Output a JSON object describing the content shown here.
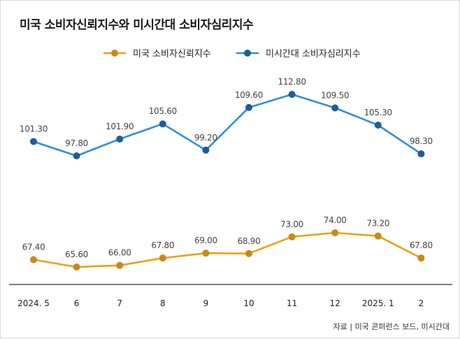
{
  "title": "미국 소비자신뢰지수와 미시간대 소비자심리지수",
  "source": "자료 | 미국 콘퍼런스 보드, 미시간대",
  "colors": {
    "orange": "#e8a317",
    "orange_marker": "#c8891a",
    "blue": "#2f8fd9",
    "blue_marker": "#1f5c96",
    "axis": "#333333",
    "label": "#444444"
  },
  "chart_data": {
    "type": "line",
    "title": "미국 소비자신뢰지수와 미시간대 소비자심리지수",
    "categories": [
      "2024. 5",
      "6",
      "7",
      "8",
      "9",
      "10",
      "11",
      "12",
      "2025. 1",
      "2"
    ],
    "series": [
      {
        "name": "미국 소비자신뢰지수",
        "color": "#e8a317",
        "values": [
          67.4,
          65.6,
          66.0,
          67.8,
          69.0,
          68.9,
          73.0,
          74.0,
          73.2,
          67.8
        ],
        "labels": [
          "67.40",
          "65.60",
          "66.00",
          "67.80",
          "69.00",
          "68.90",
          "73.00",
          "74.00",
          "73.20",
          "67.80"
        ]
      },
      {
        "name": "미시간대 소비자심리지수",
        "color": "#2f8fd9",
        "values": [
          101.3,
          97.8,
          101.9,
          105.6,
          99.2,
          109.6,
          112.8,
          109.5,
          105.3,
          98.3
        ],
        "labels": [
          "101.30",
          "97.80",
          "101.90",
          "105.60",
          "99.20",
          "109.60",
          "112.80",
          "109.50",
          "105.30",
          "98.30"
        ]
      }
    ],
    "xlabel": "",
    "ylabel": "",
    "legend": "top-center",
    "grid": false
  }
}
